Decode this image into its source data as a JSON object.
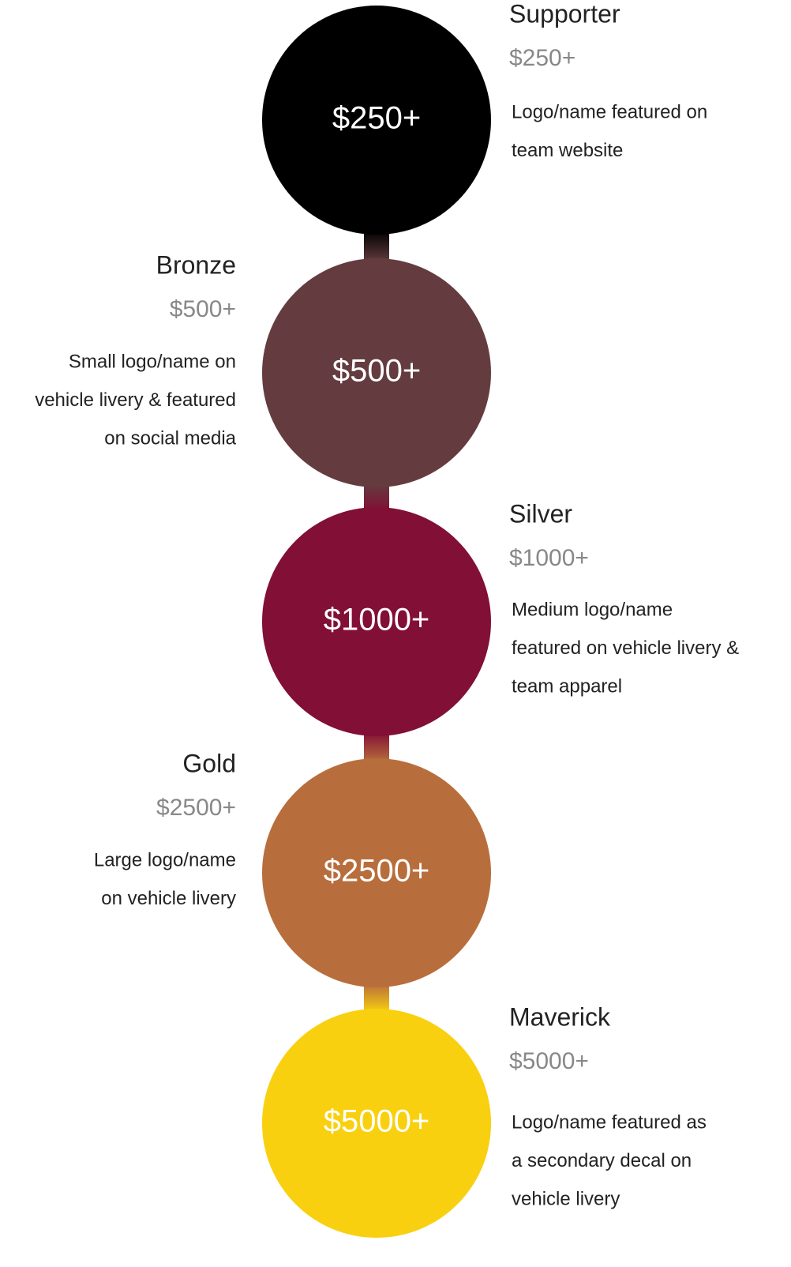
{
  "tiers": [
    {
      "name": "Supporter",
      "price": "$250+",
      "color": "#000000",
      "description": [
        "Logo/name featured on",
        "team website"
      ]
    },
    {
      "name": "Bronze",
      "price": "$500+",
      "color": "#643c3f",
      "description": [
        "Small logo/name on",
        "vehicle livery & featured",
        "on social media"
      ]
    },
    {
      "name": "Silver",
      "price": "$1000+",
      "color": "#820f35",
      "description": [
        "Medium logo/name",
        "featured on vehicle livery &",
        "team apparel"
      ]
    },
    {
      "name": "Gold",
      "price": "$2500+",
      "color": "#b86e3c",
      "description": [
        "Large logo/name",
        "on vehicle livery"
      ]
    },
    {
      "name": "Maverick",
      "price": "$5000+",
      "color": "#f9d00f",
      "description": [
        "Logo/name featured as",
        "a secondary decal on",
        "vehicle livery"
      ]
    }
  ]
}
